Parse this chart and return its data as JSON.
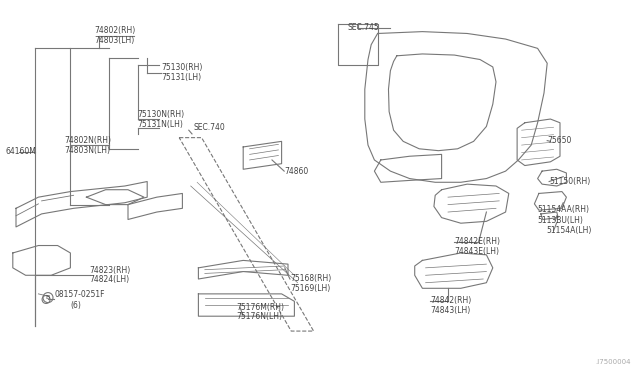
{
  "bg_color": "#ffffff",
  "lc": "#777777",
  "tc": "#444444",
  "watermark": ".I7500004",
  "fontsize": 5.5,
  "labels": {
    "74802(RH)": [
      0.148,
      0.082,
      "left"
    ],
    "74803(LH)": [
      0.148,
      0.11,
      "left"
    ],
    "75130(RH)": [
      0.252,
      0.182,
      "left"
    ],
    "75131(LH)": [
      0.252,
      0.208,
      "left"
    ],
    "75130N(RH)": [
      0.215,
      0.308,
      "left"
    ],
    "75131N(LH)": [
      0.215,
      0.334,
      "left"
    ],
    "74802N(RH)": [
      0.1,
      0.378,
      "left"
    ],
    "74803N(LH)": [
      0.1,
      0.404,
      "left"
    ],
    "64160M": [
      0.008,
      0.408,
      "left"
    ],
    "74823(RH)": [
      0.14,
      0.726,
      "left"
    ],
    "74824(LH)": [
      0.14,
      0.752,
      "left"
    ],
    "SEC.740": [
      0.302,
      0.342,
      "left"
    ],
    "74860": [
      0.444,
      0.46,
      "left"
    ],
    "75168(RH)": [
      0.453,
      0.75,
      "left"
    ],
    "75169(LH)": [
      0.453,
      0.776,
      "left"
    ],
    "75176M(RH)": [
      0.37,
      0.826,
      "left"
    ],
    "75176N(LH)": [
      0.37,
      0.852,
      "left"
    ],
    "SEC.745": [
      0.543,
      0.074,
      "left"
    ],
    "75650": [
      0.855,
      0.378,
      "left"
    ],
    "51150(RH)": [
      0.858,
      0.488,
      "left"
    ],
    "51154AA(RH)": [
      0.84,
      0.563,
      "left"
    ],
    "5113BU(LH)": [
      0.84,
      0.592,
      "left"
    ],
    "51154A(LH)": [
      0.853,
      0.62,
      "left"
    ],
    "74842E(RH)": [
      0.71,
      0.65,
      "left"
    ],
    "74843E(LH)": [
      0.71,
      0.676,
      "left"
    ],
    "74842(RH)": [
      0.672,
      0.808,
      "left"
    ],
    "74843(LH)": [
      0.672,
      0.834,
      "left"
    ]
  },
  "bolt_label": [
    "B08157-0251F",
    0.098,
    0.792
  ],
  "bolt_label2": [
    "(6)",
    0.115,
    0.82
  ]
}
